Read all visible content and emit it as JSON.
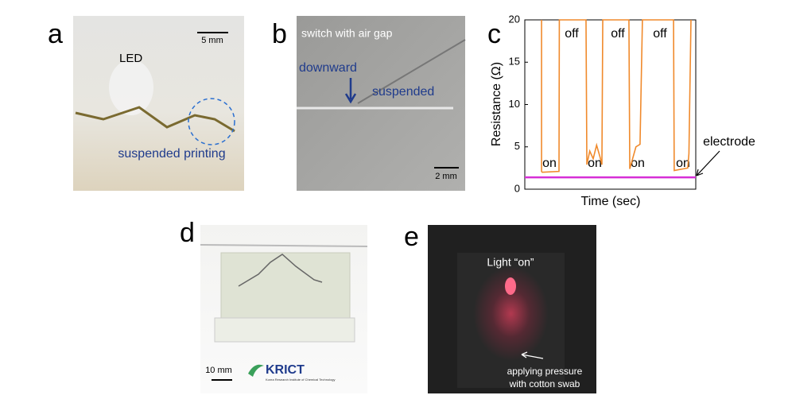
{
  "panels": {
    "a": {
      "letter": "a",
      "led": "LED",
      "scale": "5 mm",
      "caption": "suspended printing"
    },
    "b": {
      "letter": "b",
      "title": "switch with air gap",
      "left": "downward",
      "right": "suspended",
      "scale": "2 mm"
    },
    "d": {
      "letter": "d",
      "scale": "10 mm",
      "logo": "KRICT",
      "logo_sub": "Korea Research Institute of Chemical Technology"
    },
    "e": {
      "letter": "e",
      "light": "Light “on”",
      "note1": "applying pressure",
      "note2": "with cotton swab"
    }
  },
  "chart_data": {
    "type": "line",
    "letter": "c",
    "xlabel": "Time (sec)",
    "ylabel": "Resistance (Ω)",
    "xlim": [
      0,
      100
    ],
    "ylim": [
      0,
      20
    ],
    "yticks": [
      0,
      5,
      10,
      15,
      20
    ],
    "series": [
      {
        "color": "#f08a2c",
        "x": [
          9.8,
          9.8,
          10.2,
          20,
          20.2,
          35.8,
          36.3,
          38,
          40,
          42,
          44,
          45.1,
          45.6,
          60.9,
          61.4,
          65,
          67.4,
          68.8,
          87,
          87.4,
          95.3,
          96,
          97.2
        ],
        "values": [
          20,
          2.1,
          2,
          2.1,
          20,
          20,
          2.9,
          4.5,
          3.6,
          5.2,
          3.8,
          2.9,
          20,
          20,
          2.4,
          5,
          5.3,
          20,
          20,
          2.2,
          2.5,
          4.2,
          20
        ]
      },
      {
        "color": "#d62fd6",
        "x": [
          0,
          100
        ],
        "values": [
          1.4,
          1.4
        ]
      }
    ],
    "annotations": [
      "off",
      "off",
      "off",
      "on",
      "on",
      "on",
      "on",
      "electrode"
    ]
  }
}
